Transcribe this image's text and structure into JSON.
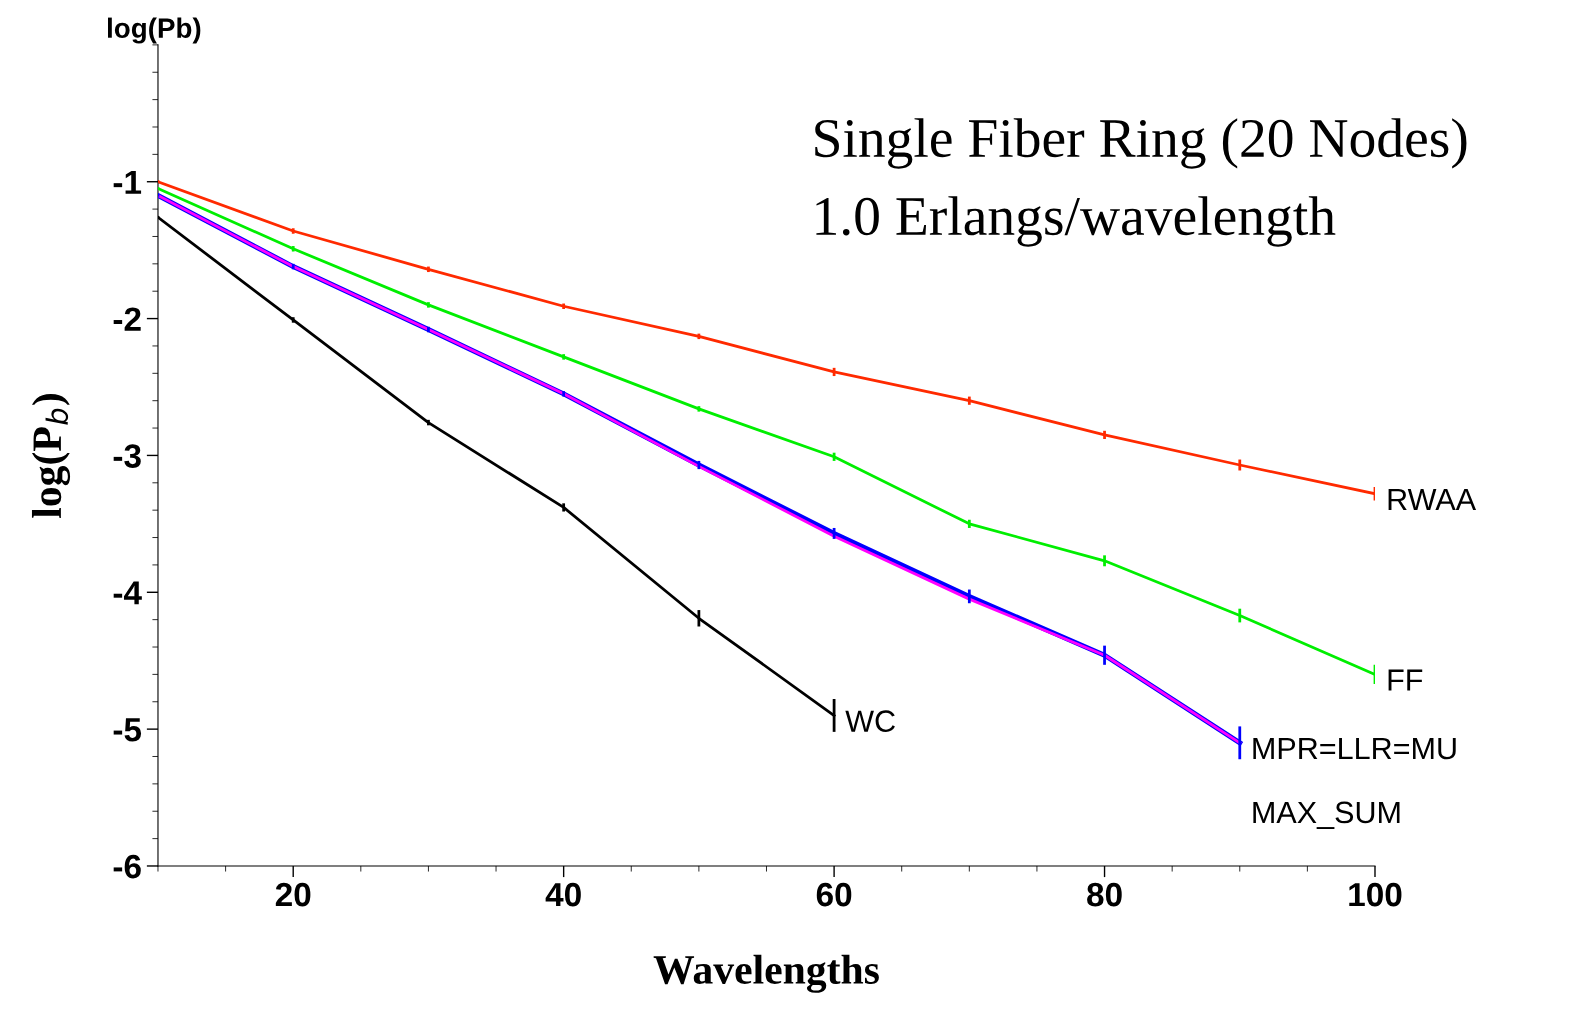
{
  "chart_data": {
    "type": "line",
    "title": "Single Fiber Ring (20 Nodes)",
    "subtitle": "1.0 Erlangs/wavelength",
    "xlabel": "Wavelengths",
    "ylabel": "log(P$_{b}$)",
    "annotations": [
      "log(Pb)"
    ],
    "x": [
      10,
      20,
      30,
      40,
      50,
      60,
      70,
      80,
      90,
      100
    ],
    "series": [
      {
        "name": "RWAA",
        "color": "#ff2a00",
        "values": [
          -1.0,
          -1.36,
          -1.64,
          -1.91,
          -2.13,
          -2.39,
          -2.6,
          -2.85,
          -3.07,
          -3.28
        ],
        "errors": [
          0.01,
          0.02,
          0.02,
          0.02,
          0.02,
          0.03,
          0.03,
          0.03,
          0.04,
          0.05
        ]
      },
      {
        "name": "FF",
        "color": "#00ee00",
        "values": [
          -1.05,
          -1.49,
          -1.9,
          -2.28,
          -2.66,
          -3.01,
          -3.5,
          -3.77,
          -4.17,
          -4.6
        ],
        "errors": [
          0.01,
          0.02,
          0.02,
          0.02,
          0.02,
          0.03,
          0.03,
          0.04,
          0.05,
          0.07
        ]
      },
      {
        "name": "MPR=LLR=MU",
        "color": "#0000ff",
        "values": [
          -1.1,
          -1.62,
          -2.08,
          -2.55,
          -3.07,
          -3.57,
          -4.03,
          -4.46,
          -5.1,
          null
        ],
        "errors": [
          0.01,
          0.02,
          0.02,
          0.02,
          0.03,
          0.04,
          0.05,
          0.07,
          0.12,
          null
        ]
      },
      {
        "name": "MAX_SUM",
        "color": "#ff00ff",
        "values": [
          -1.1,
          -1.62,
          -2.08,
          -2.55,
          -3.08,
          -3.59,
          -4.05,
          -4.46,
          -5.1,
          null
        ]
      },
      {
        "name": "WC",
        "color": "#000000",
        "values": [
          -1.26,
          -2.01,
          -2.76,
          -3.38,
          -4.19,
          -4.9,
          null,
          null,
          null,
          null
        ],
        "errors": [
          0.01,
          0.02,
          0.02,
          0.03,
          0.06,
          0.12,
          null,
          null,
          null,
          null
        ]
      }
    ],
    "xlim": [
      10,
      100
    ],
    "xticks": [
      20,
      40,
      60,
      80,
      100
    ],
    "ylim": [
      -6,
      0
    ],
    "yticks": [
      -6,
      -5,
      -4,
      -3,
      -2,
      -1
    ],
    "grid": false,
    "marker": "none",
    "line_style": "solid"
  }
}
